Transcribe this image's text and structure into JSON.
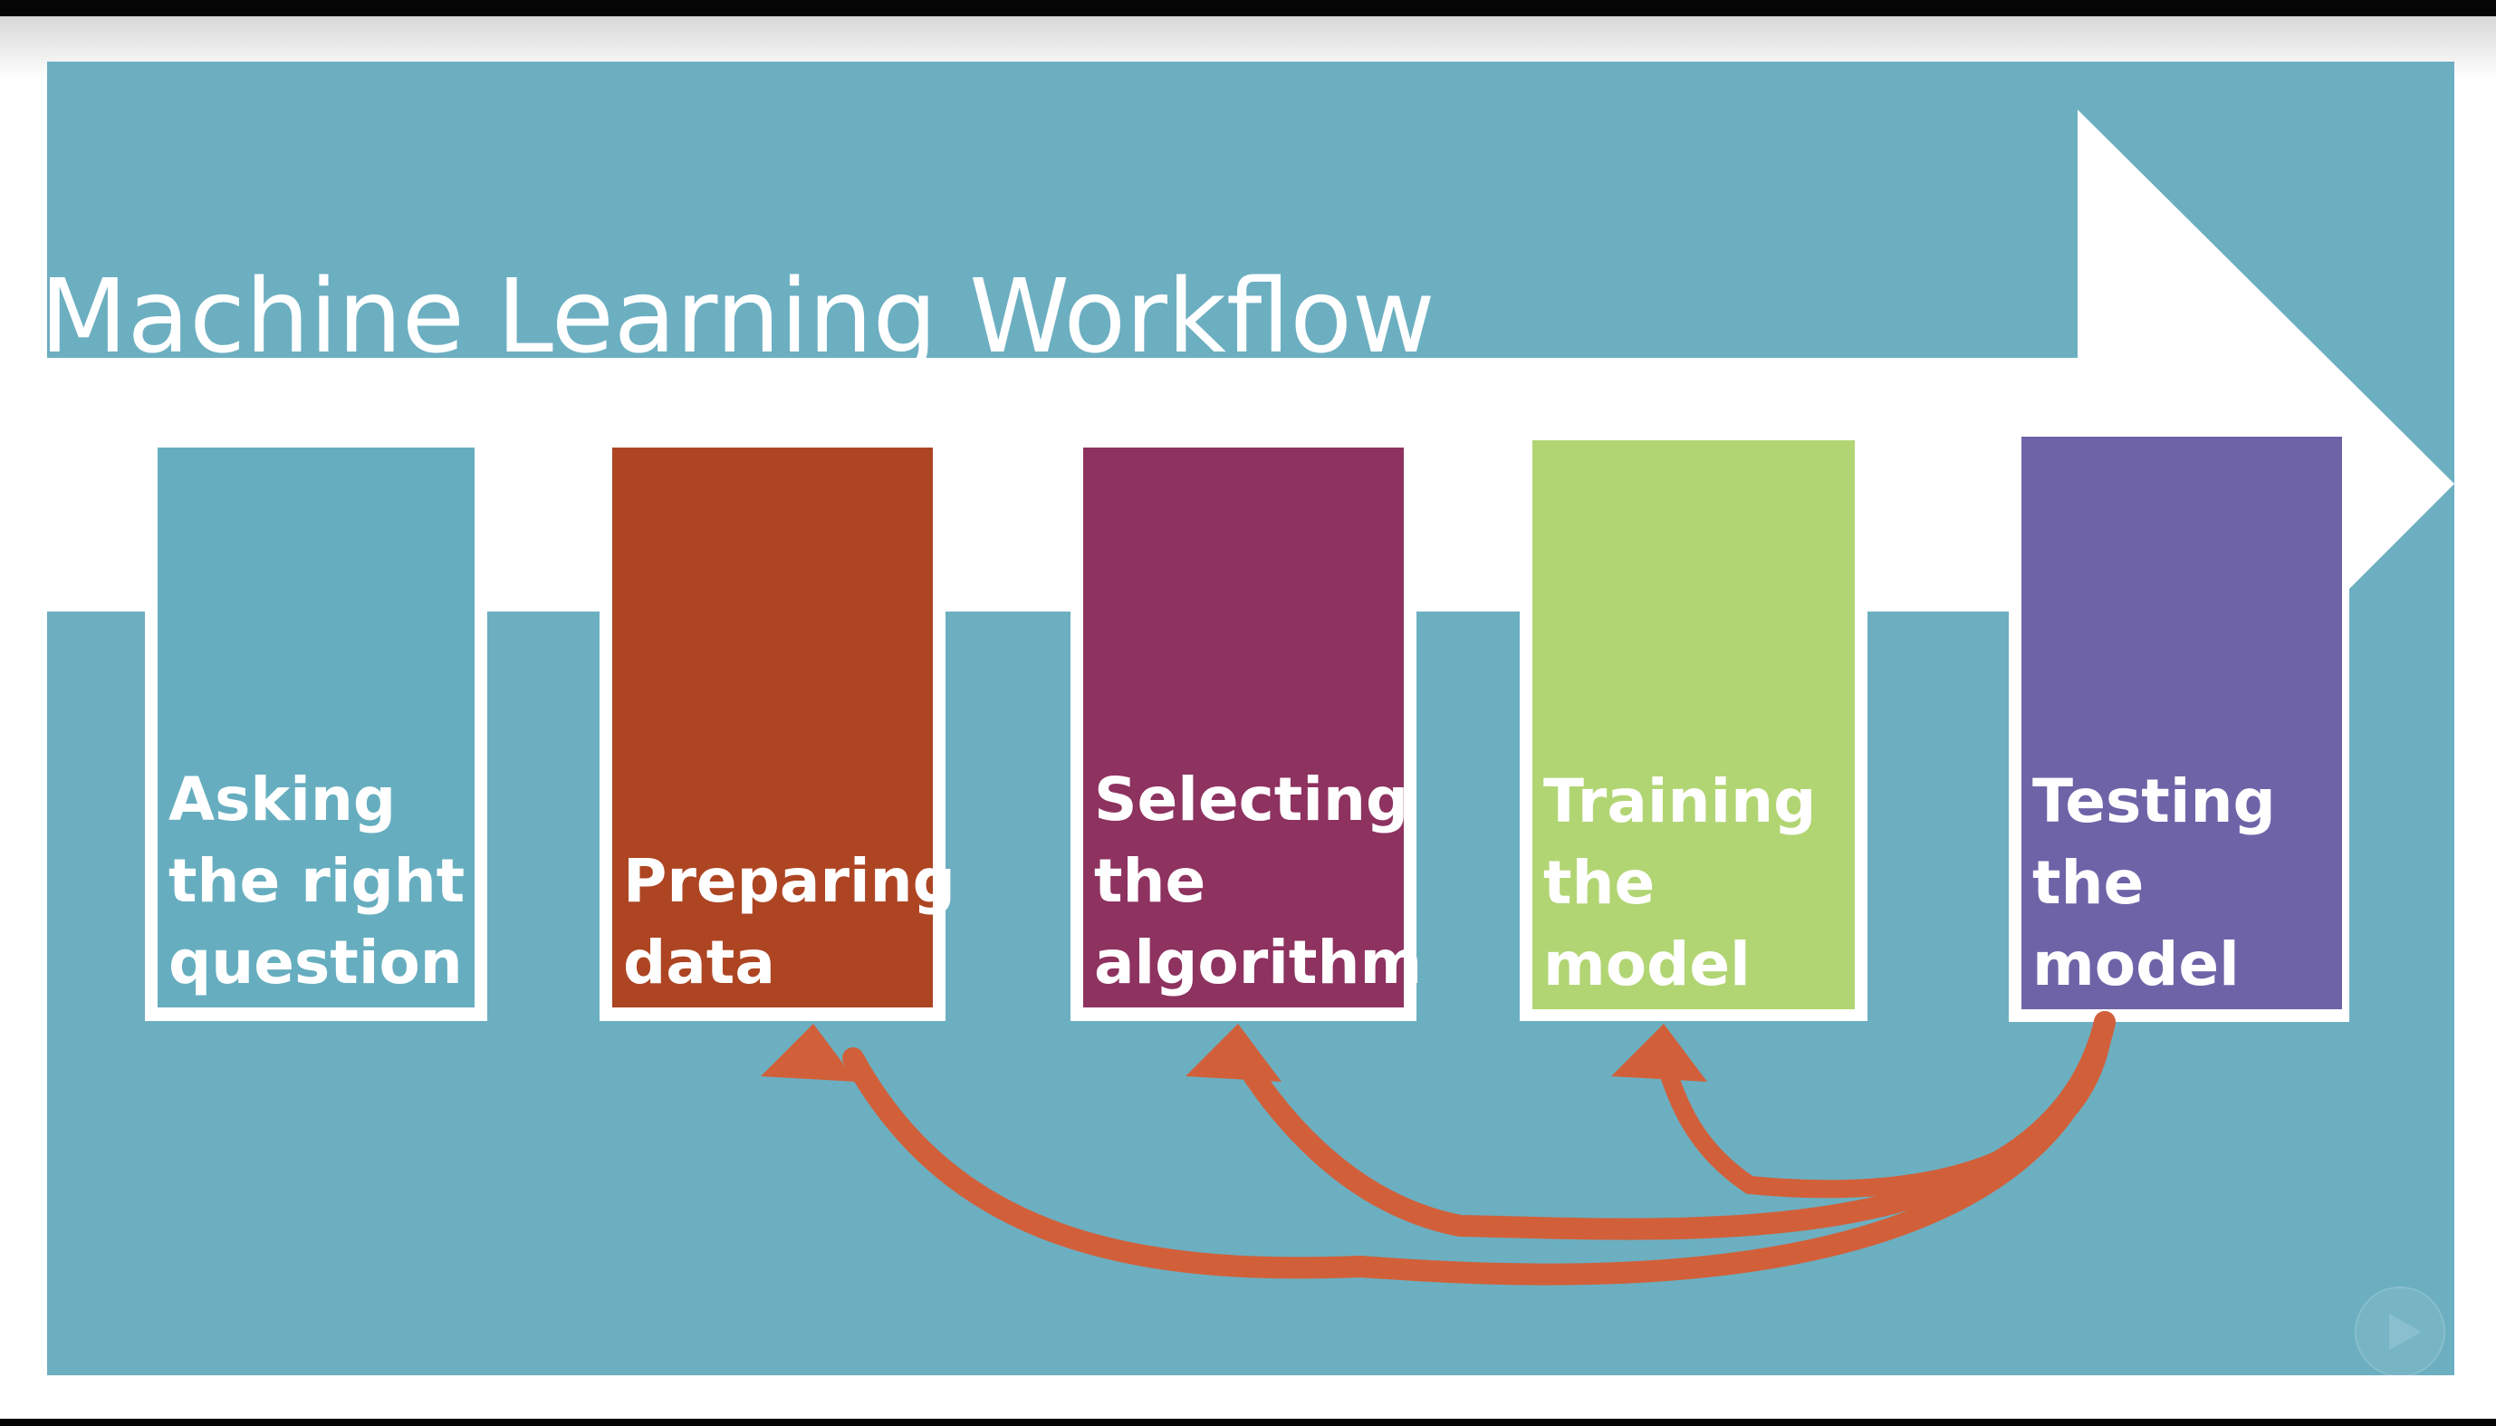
{
  "title": "Machine Learning Workflow",
  "colors": {
    "background": "#6cafc1",
    "arrow": "#ffffff",
    "feedback_arrows": "#d1603a"
  },
  "steps": [
    {
      "label": "Asking\nthe right\nquestion",
      "color": "#66aebf"
    },
    {
      "label": "Preparing\ndata",
      "color": "#ad4523"
    },
    {
      "label": "Selecting\nthe\nalgorithm",
      "color": "#8e3260"
    },
    {
      "label": "Training\nthe\nmodel",
      "color": "#b2d574"
    },
    {
      "label": "Testing\nthe\nmodel",
      "color": "#6f63a8"
    }
  ],
  "feedback_loops": [
    {
      "from": "Testing the model",
      "to": "Training the model"
    },
    {
      "from": "Testing the model",
      "to": "Selecting the algorithm"
    },
    {
      "from": "Testing the model",
      "to": "Preparing data"
    }
  ],
  "icons": [
    "play-icon"
  ]
}
